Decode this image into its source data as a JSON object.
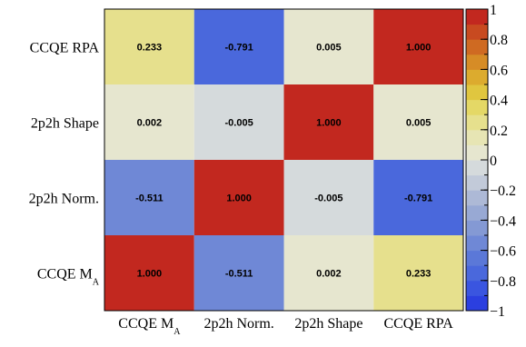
{
  "chart_data": {
    "type": "heatmap",
    "x_categories": [
      "CCQE M_A",
      "2p2h Norm.",
      "2p2h Shape",
      "CCQE RPA"
    ],
    "y_categories": [
      "CCQE M_A",
      "2p2h Norm.",
      "2p2h Shape",
      "CCQE RPA"
    ],
    "x_labels": [
      {
        "main": "CCQE M",
        "sub": "A"
      },
      {
        "main": "2p2h Norm.",
        "sub": ""
      },
      {
        "main": "2p2h Shape",
        "sub": ""
      },
      {
        "main": "CCQE RPA",
        "sub": ""
      }
    ],
    "y_labels": [
      {
        "main": "CCQE M",
        "sub": "A"
      },
      {
        "main": "2p2h Norm.",
        "sub": ""
      },
      {
        "main": "2p2h Shape",
        "sub": ""
      },
      {
        "main": "CCQE RPA",
        "sub": ""
      }
    ],
    "matrix": [
      [
        1.0,
        -0.511,
        0.002,
        0.233
      ],
      [
        -0.511,
        1.0,
        -0.005,
        -0.791
      ],
      [
        0.002,
        -0.005,
        1.0,
        0.005
      ],
      [
        0.233,
        -0.791,
        0.005,
        1.0
      ]
    ],
    "matrix_labels": [
      [
        "1.000",
        "-0.511",
        "0.002",
        "0.233"
      ],
      [
        "-0.511",
        "1.000",
        "-0.005",
        "-0.791"
      ],
      [
        "0.002",
        "-0.005",
        "1.000",
        "0.005"
      ],
      [
        "0.233",
        "-0.791",
        "0.005",
        "1.000"
      ]
    ],
    "zlim": [
      -1,
      1
    ],
    "colorbar_ticks": [
      {
        "value": 1,
        "label": "1"
      },
      {
        "value": 0.8,
        "label": "0.8"
      },
      {
        "value": 0.6,
        "label": "0.6"
      },
      {
        "value": 0.4,
        "label": "0.4"
      },
      {
        "value": 0.2,
        "label": "0.2"
      },
      {
        "value": 0,
        "label": "0"
      },
      {
        "value": -0.2,
        "label": "−0.2"
      },
      {
        "value": -0.4,
        "label": "−0.4"
      },
      {
        "value": -0.6,
        "label": "−0.6"
      },
      {
        "value": -0.8,
        "label": "−0.8"
      },
      {
        "value": -1,
        "label": "−1"
      }
    ],
    "palette": [
      "#2b3fe0",
      "#3a55e0",
      "#4a68dc",
      "#5b78d8",
      "#6f88d6",
      "#8499d4",
      "#98a9d4",
      "#adb9d6",
      "#c2cad9",
      "#d5dadc",
      "#e6e6cf",
      "#e7e5b4",
      "#e6e08d",
      "#e4d866",
      "#e0c63f",
      "#dcab2e",
      "#d68c26",
      "#cf6a22",
      "#c84a20",
      "#c2281f"
    ],
    "grid": false,
    "legend": "colorbar-right"
  }
}
